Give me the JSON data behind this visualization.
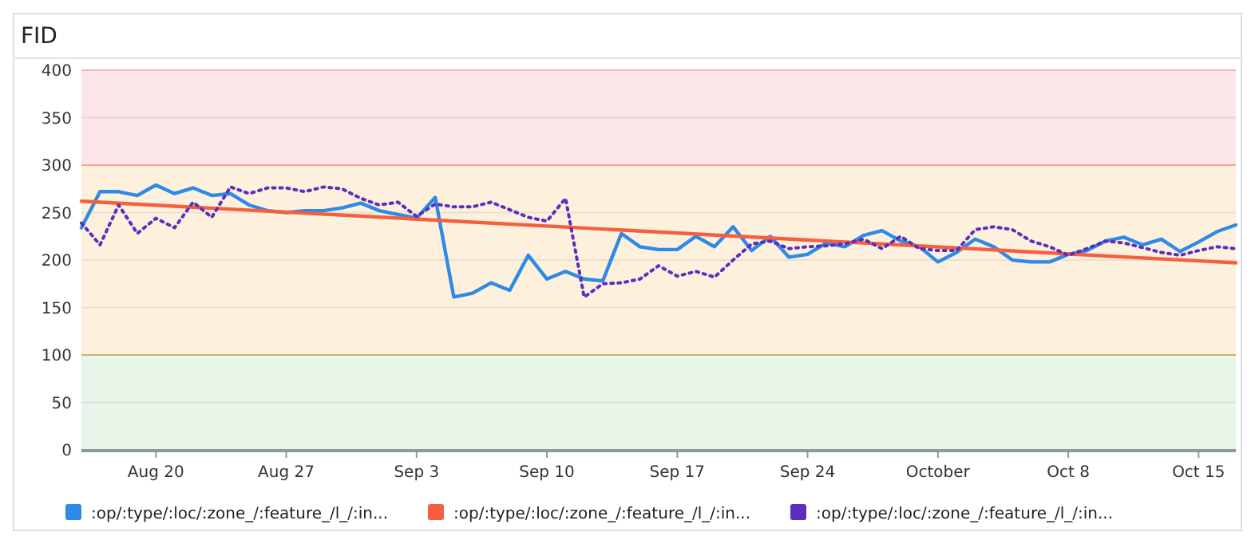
{
  "chart_data": {
    "type": "line",
    "title": "FID",
    "xlim": [
      "--08-16",
      "--10-17"
    ],
    "xticks": [
      {
        "value": "--08-20",
        "label": "Aug 20"
      },
      {
        "value": "--08-27",
        "label": "Aug 27"
      },
      {
        "value": "--09-03",
        "label": "Sep 3"
      },
      {
        "value": "--09-10",
        "label": "Sep 10"
      },
      {
        "value": "--09-17",
        "label": "Sep 17"
      },
      {
        "value": "--09-24",
        "label": "Sep 24"
      },
      {
        "value": "--10-01",
        "label": "October"
      },
      {
        "value": "--10-08",
        "label": "Oct 8"
      },
      {
        "value": "--10-15",
        "label": "Oct 15"
      }
    ],
    "x": [
      "--08-16",
      "--08-17",
      "--08-18",
      "--08-19",
      "--08-20",
      "--08-21",
      "--08-22",
      "--08-23",
      "--08-24",
      "--08-25",
      "--08-26",
      "--08-27",
      "--08-28",
      "--08-29",
      "--08-30",
      "--08-31",
      "--09-01",
      "--09-02",
      "--09-03",
      "--09-04",
      "--09-05",
      "--09-06",
      "--09-07",
      "--09-08",
      "--09-09",
      "--09-10",
      "--09-11",
      "--09-12",
      "--09-13",
      "--09-14",
      "--09-15",
      "--09-16",
      "--09-17",
      "--09-18",
      "--09-19",
      "--09-20",
      "--09-21",
      "--09-22",
      "--09-23",
      "--09-24",
      "--09-25",
      "--09-26",
      "--09-27",
      "--09-28",
      "--09-29",
      "--09-30",
      "--10-01",
      "--10-02",
      "--10-03",
      "--10-04",
      "--10-05",
      "--10-06",
      "--10-07",
      "--10-08",
      "--10-09",
      "--10-10",
      "--10-11",
      "--10-12",
      "--10-13",
      "--10-14",
      "--10-15",
      "--10-16",
      "--10-17"
    ],
    "ref_lines": [
      {
        "axis": "y",
        "value": 100,
        "color": "#c9b56a"
      },
      {
        "axis": "y",
        "value": 300,
        "color": "#f5a38c"
      },
      {
        "axis": "y",
        "value": 400,
        "color": "#f3b3bb"
      }
    ],
    "ylim": [
      0,
      400
    ],
    "yticks": [
      0,
      50,
      100,
      150,
      200,
      250,
      300,
      350,
      400
    ],
    "grid": "y",
    "legend": "bottom",
    "bands": [
      {
        "axis": "y",
        "from": 0,
        "to": 100,
        "color": "#e7f6e9"
      },
      {
        "axis": "y",
        "from": 100,
        "to": 300,
        "color": "#fdf1de"
      },
      {
        "axis": "y",
        "from": 300,
        "to": 400,
        "color": "#fce6e7"
      }
    ],
    "series": [
      {
        "name": ":op/:type/:loc/:zone_/:feature_/l_/:in...",
        "color": "#2e8ae6",
        "line_style": "solid",
        "values": [
          234,
          272,
          272,
          268,
          279,
          270,
          276,
          268,
          270,
          258,
          252,
          250,
          252,
          252,
          255,
          260,
          252,
          248,
          244,
          266,
          161,
          165,
          176,
          168,
          205,
          180,
          188,
          180,
          178,
          228,
          214,
          211,
          211,
          225,
          214,
          235,
          210,
          225,
          203,
          206,
          218,
          214,
          226,
          231,
          220,
          214,
          198,
          208,
          222,
          214,
          200,
          198,
          198,
          206,
          210,
          220,
          224,
          216,
          222,
          209,
          219,
          230,
          237
        ]
      },
      {
        "name": ":op/:type/:loc/:zone_/:feature_/l_/:in...",
        "color": "#f55f3e",
        "line_style": "solid",
        "x": [
          "--08-16",
          "--10-17"
        ],
        "values": [
          262,
          197
        ]
      },
      {
        "name": ":op/:type/:loc/:zone_/:feature_/l_/:in...",
        "color": "#5a2fbd",
        "line_style": "dotted",
        "values": [
          239,
          216,
          258,
          228,
          244,
          234,
          261,
          245,
          277,
          270,
          276,
          276,
          272,
          277,
          275,
          265,
          258,
          261,
          246,
          259,
          256,
          256,
          261,
          253,
          245,
          241,
          265,
          161,
          175,
          176,
          180,
          194,
          183,
          188,
          182,
          200,
          217,
          220,
          212,
          214,
          215,
          217,
          222,
          212,
          225,
          212,
          210,
          210,
          232,
          235,
          232,
          220,
          214,
          205,
          212,
          220,
          218,
          213,
          208,
          205,
          210,
          214,
          212
        ]
      }
    ]
  }
}
